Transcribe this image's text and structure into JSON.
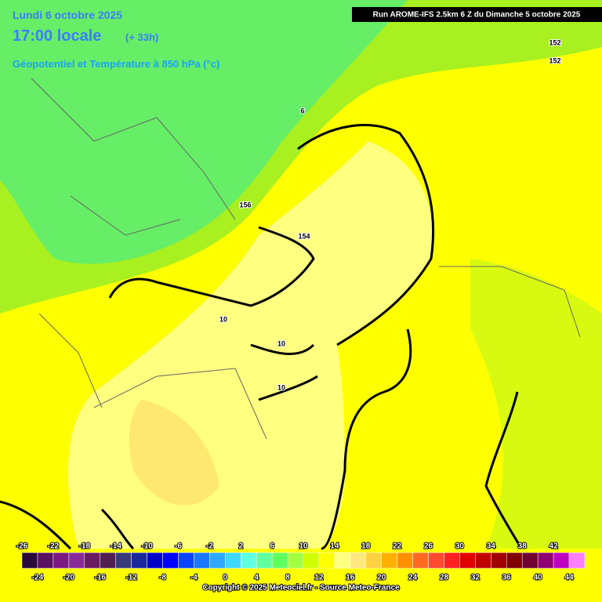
{
  "header": {
    "date": "Lundi 6 octobre 2025",
    "time": "17:00 locale",
    "lead": "(+ 33h)",
    "field": "Géopotentiel et Température à 850 hPa (°c)",
    "run": "Run AROME-IFS 2.5km 6 Z du Dimanche 5 octobre 2025"
  },
  "contour_labels": [
    152,
    152,
    6,
    156,
    154,
    10,
    10,
    10
  ],
  "scale": {
    "top_labels": [
      -26,
      -22,
      -18,
      -14,
      -10,
      -6,
      -2,
      2,
      6,
      10,
      14,
      18,
      22,
      26,
      30,
      34,
      38,
      42
    ],
    "bottom_labels": [
      -24,
      -20,
      -16,
      -12,
      -8,
      -4,
      0,
      4,
      8,
      12,
      16,
      20,
      24,
      28,
      32,
      36,
      40,
      44
    ],
    "colors": [
      "#2a0a3a",
      "#5a1060",
      "#7a1a80",
      "#8a2a9a",
      "#6a1a60",
      "#502050",
      "#3a3a7a",
      "#1a2a9a",
      "#0000c8",
      "#0000ff",
      "#0a46ff",
      "#1a78ff",
      "#30a8ff",
      "#40d8ff",
      "#60ffe0",
      "#60ffa0",
      "#60ff60",
      "#a0ff40",
      "#d0ff00",
      "#ffff00",
      "#ffff80",
      "#ffe880",
      "#ffd040",
      "#ffb000",
      "#ff9000",
      "#ff6a20",
      "#ff4a30",
      "#ff2020",
      "#e00000",
      "#c00000",
      "#a00000",
      "#800000",
      "#700030",
      "#900070",
      "#c000c0",
      "#ff80ff"
    ]
  },
  "footer": "Copyright © 2025 Meteociel.fr - Source Meteo-France"
}
